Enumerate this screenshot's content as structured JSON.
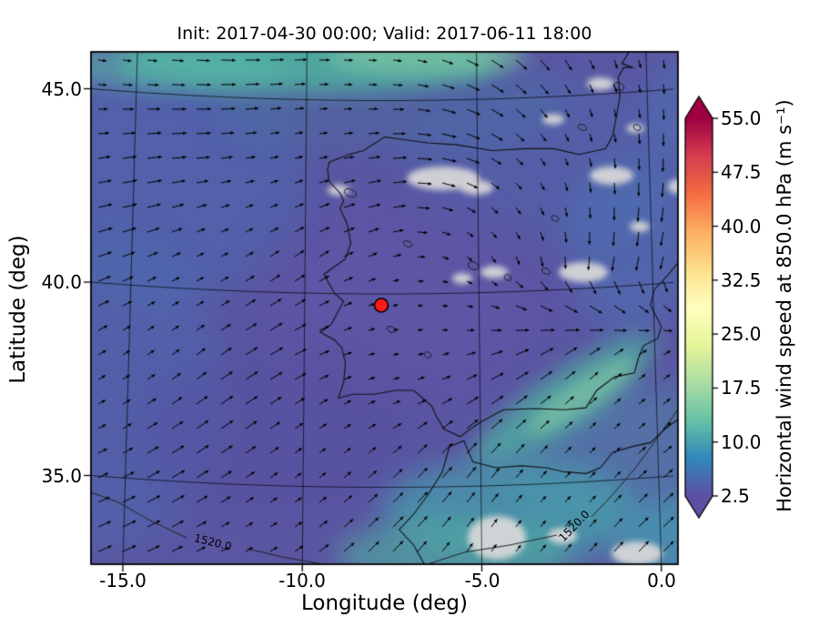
{
  "title": "Init: 2017-04-30 00:00; Valid: 2017-06-11 18:00",
  "chart_data": {
    "type": "heatmap",
    "subtype": "map-filled-contours-with-wind-quiver",
    "title": "Init: 2017-04-30 00:00; Valid: 2017-06-11 18:00",
    "xlabel": "Longitude (deg)",
    "ylabel": "Latitude (deg)",
    "xlim": [
      -15.9,
      0.5
    ],
    "ylim": [
      32.7,
      45.9
    ],
    "xticks": [
      -15.0,
      -10.0,
      -5.0,
      0.0
    ],
    "xtick_labels": [
      "-15.0",
      "-10.0",
      "-5.0",
      "0.0"
    ],
    "yticks_top_to_bottom": [
      45.0,
      40.0,
      35.0
    ],
    "ytick_labels": [
      "45.0",
      "40.0",
      "35.0"
    ],
    "grid": true,
    "region": "Iberian Peninsula and surroundings",
    "colorbar": {
      "label": "Horizontal wind speed at 850.0 hPa (m s⁻¹)",
      "ticks_top_to_bottom": [
        55.0,
        47.5,
        40.0,
        32.5,
        25.0,
        17.5,
        10.0,
        2.5
      ],
      "tick_labels": [
        "55.0",
        "47.5",
        "40.0",
        "32.5",
        "25.0",
        "17.5",
        "10.0",
        "2.5"
      ],
      "vmin": 2.5,
      "vmax": 55.0,
      "colormap": "Spectral_r",
      "gradient_bottom_to_top": [
        "#5e4fa2",
        "#3288bd",
        "#66c2a5",
        "#abdda4",
        "#e6f598",
        "#ffffbf",
        "#fee08b",
        "#fdae61",
        "#f46d43",
        "#d53e4f",
        "#9e0142"
      ],
      "over_arrow_color": "#9e0142",
      "under_arrow_color": "#5e4fa2"
    },
    "marker": {
      "lon": -7.8,
      "lat": 39.4,
      "color": "#ff1a1a",
      "edge_color": "#000000"
    },
    "contour_labels": [
      {
        "text": "1520.0"
      },
      {
        "text": "1520.0"
      }
    ],
    "geopotential_contour_value": 1520.0,
    "observed_speed_range_m_s": [
      2.5,
      17.5
    ],
    "map_colors": {
      "base": "#5b57a3",
      "blue": "#4a6cb2",
      "teal": "#4fb3a0",
      "green": "#8fcfa5",
      "masked": "#d9d9d9",
      "coastline": "#111111",
      "arrows": "#000000"
    }
  }
}
